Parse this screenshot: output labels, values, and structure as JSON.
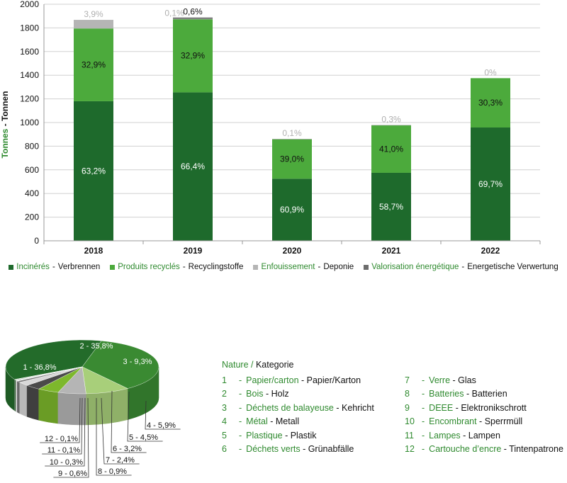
{
  "chart_data": [
    {
      "type": "bar",
      "stacked": true,
      "ylabel_fr": "Tonnes",
      "ylabel_sep": " - ",
      "ylabel_de": "Tonnen",
      "ylim": [
        0,
        2000
      ],
      "yticks": [
        "0",
        "200",
        "400",
        "600",
        "800",
        "1000",
        "1200",
        "1400",
        "1600",
        "1800",
        "2000"
      ],
      "categories": [
        "2018",
        "2019",
        "2020",
        "2021",
        "2022"
      ],
      "series": [
        {
          "name_fr": "Incinérés",
          "name_de": "Verbrennen",
          "color": "#1e6a2c",
          "values": [
            1180,
            1255,
            525,
            575,
            958
          ],
          "labels": [
            "63,2%",
            "66,4%",
            "60,9%",
            "58,7%",
            "69,7%"
          ]
        },
        {
          "name_fr": "Produits recyclés",
          "name_de": "Recyclingstoffe",
          "color": "#4caa3c",
          "values": [
            615,
            620,
            336,
            402,
            417
          ],
          "labels": [
            "32,9%",
            "32,9%",
            "39,0%",
            "41,0%",
            "30,3%"
          ]
        },
        {
          "name_fr": "Enfouissement",
          "name_de": "Deponie",
          "color": "#b5b5b5",
          "values": [
            73,
            2,
            1,
            3,
            0
          ],
          "labels": [
            "3,9%",
            "0,1%",
            "0,1%",
            "0,3%",
            "0%"
          ]
        },
        {
          "name_fr": "Valorisation énergétique",
          "name_de": "Energetische Verwertung",
          "color": "#6d6d6d",
          "values": [
            0,
            11,
            0,
            0,
            0
          ],
          "labels": [
            "",
            "0,6%",
            "",
            "",
            ""
          ]
        }
      ],
      "legend_position": "bottom",
      "grid": true
    },
    {
      "type": "pie",
      "style": "3d",
      "values": [
        36.8,
        35.8,
        9.3,
        5.9,
        4.5,
        3.2,
        2.4,
        0.9,
        0.6,
        0.3,
        0.1,
        0.1
      ],
      "labels": [
        "1 - 36,8%",
        "2 - 35,8%",
        "3 - 9,3%",
        "4 - 5,9%",
        "5 - 4,5%",
        "6 - 3,2%",
        "7 - 2,4%",
        "8 - 0,9%",
        "9 - 0,6%",
        "10 - 0,3%",
        "11 - 0,1%",
        "12 - 0,1%"
      ],
      "colors": [
        "#236b2a",
        "#3a8a32",
        "#a8cf7a",
        "#b5b5b5",
        "#7db82c",
        "#4a4a4a",
        "#d8d8d8",
        "#7a7a7a",
        "#f4f4f4",
        "#2a6a2a",
        "#cfcfcf",
        "#8a8a8a"
      ]
    }
  ],
  "kategorie": {
    "title_fr": "Nature /",
    "title_de": "Kategorie",
    "items": [
      {
        "num": "1",
        "fr": "Papier/carton",
        "de": "Papier/Karton"
      },
      {
        "num": "2",
        "fr": "Bois",
        "de": "Holz"
      },
      {
        "num": "3",
        "fr": "Déchets de balayeuse",
        "de": "Kehricht"
      },
      {
        "num": "4",
        "fr": "Métal",
        "de": "Metall"
      },
      {
        "num": "5",
        "fr": "Plastique",
        "de": "Plastik"
      },
      {
        "num": "6",
        "fr": "Déchets verts",
        "de": "Grünabfälle"
      },
      {
        "num": "7",
        "fr": "Verre",
        "de": "Glas"
      },
      {
        "num": "8",
        "fr": "Batteries",
        "de": "Batterien"
      },
      {
        "num": "9",
        "fr": "DEEE",
        "de": "Elektronikschrott"
      },
      {
        "num": "10",
        "fr": "Encombrant",
        "de": "Sperrmüll"
      },
      {
        "num": "11",
        "fr": "Lampes",
        "de": "Lampen"
      },
      {
        "num": "12",
        "fr": "Cartouche d’encre",
        "de": "Tintenpatrone"
      }
    ]
  }
}
